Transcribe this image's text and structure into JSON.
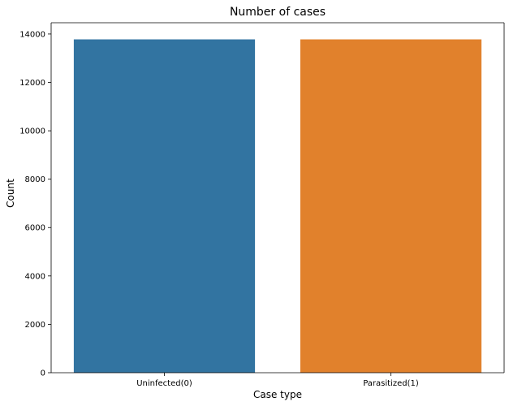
{
  "chart_data": {
    "type": "bar",
    "title": "Number of cases",
    "xlabel": "Case type",
    "ylabel": "Count",
    "categories": [
      "Uninfected(0)",
      "Parasitized(1)"
    ],
    "values": [
      13779,
      13779
    ],
    "colors": [
      "#3274a1",
      "#e1812c"
    ],
    "ylim": [
      0,
      14467
    ],
    "yticks": [
      0,
      2000,
      4000,
      6000,
      8000,
      10000,
      12000,
      14000
    ],
    "grid": false,
    "legend": "none"
  }
}
